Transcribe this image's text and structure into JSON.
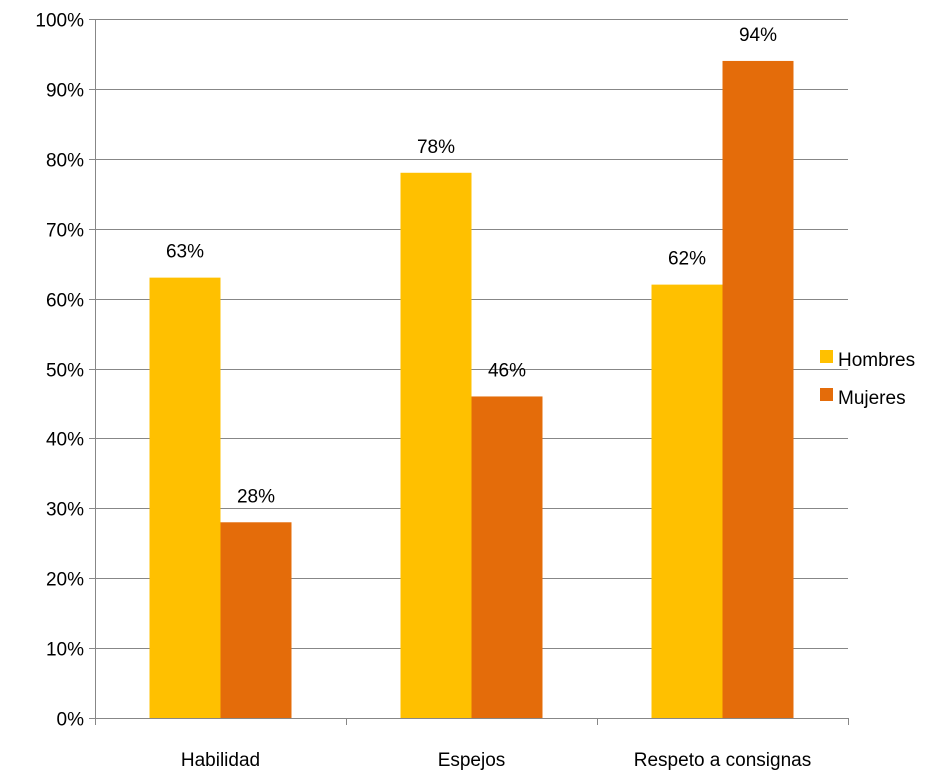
{
  "chart_data": {
    "type": "bar",
    "categories": [
      "Habilidad",
      "Espejos",
      "Respeto a consignas"
    ],
    "series": [
      {
        "name": "Hombres",
        "values": [
          63,
          78,
          62
        ],
        "color": "#FFC000"
      },
      {
        "name": "Mujeres",
        "values": [
          28,
          46,
          94
        ],
        "color": "#E46C0A"
      }
    ],
    "ylim": [
      0,
      100
    ],
    "yticks": [
      0,
      10,
      20,
      30,
      40,
      50,
      60,
      70,
      80,
      90,
      100
    ],
    "ytick_suffix": "%",
    "data_label_suffix": "%",
    "grid": true,
    "legend_position": "right",
    "title": "",
    "xlabel": "",
    "ylabel": ""
  }
}
